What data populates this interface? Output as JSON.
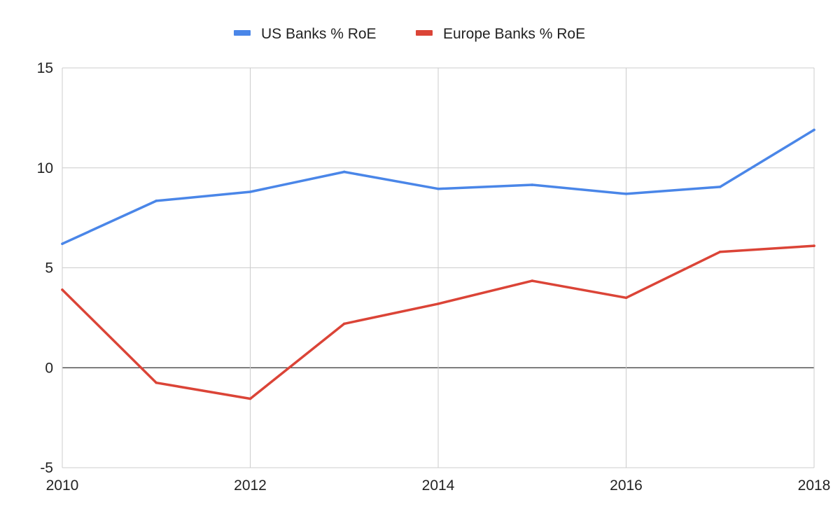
{
  "chart_data": {
    "type": "line",
    "x": [
      2010,
      2011,
      2012,
      2013,
      2014,
      2015,
      2016,
      2017,
      2018
    ],
    "series": [
      {
        "name": "US Banks % RoE",
        "color": "#4a86e8",
        "values": [
          6.2,
          8.35,
          8.8,
          9.8,
          8.95,
          9.15,
          8.7,
          9.05,
          11.9
        ]
      },
      {
        "name": "Europe Banks % RoE",
        "color": "#db4437",
        "values": [
          3.9,
          -0.75,
          -1.55,
          2.2,
          3.2,
          4.35,
          3.5,
          5.8,
          6.1
        ]
      }
    ],
    "xlim": [
      2010,
      2018
    ],
    "ylim": [
      -5,
      15
    ],
    "x_ticks": [
      "2010",
      "2012",
      "2014",
      "2016",
      "2018"
    ],
    "y_ticks": [
      "-5",
      "0",
      "5",
      "10",
      "15"
    ],
    "grid": true,
    "legend_position": "top",
    "title": "",
    "xlabel": "",
    "ylabel": ""
  }
}
